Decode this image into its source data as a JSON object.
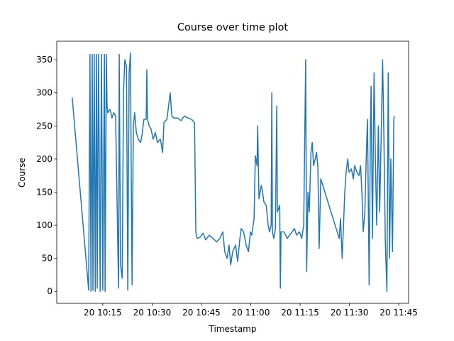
{
  "chart_data": {
    "type": "line",
    "title": "Course over time plot",
    "x_label": "Timestamp",
    "y_label": "Course",
    "color": "#1f77b4",
    "x": [
      605.7,
      610.7,
      611.1,
      611.4,
      611.8,
      612.0,
      612.4,
      612.7,
      613.1,
      613.3,
      613.7,
      614.2,
      614.6,
      615.0,
      615.5,
      615.7,
      616.1,
      616.3,
      616.5,
      617.2,
      617.8,
      618.3,
      618.9,
      619.6,
      619.8,
      620.0,
      620.4,
      620.9,
      621.3,
      621.7,
      622.2,
      622.6,
      623.0,
      623.4,
      623.9,
      624.3,
      624.7,
      625.2,
      625.8,
      626.5,
      626.9,
      627.5,
      628.2,
      628.4,
      628.6,
      629.1,
      629.7,
      630.3,
      631.0,
      631.6,
      632.5,
      633.2,
      633.6,
      634.5,
      635.5,
      636.0,
      636.6,
      637.7,
      638.8,
      639.8,
      640.9,
      642.0,
      642.9,
      643.3,
      643.7,
      644.6,
      645.5,
      646.3,
      647.4,
      648.5,
      649.6,
      650.6,
      651.5,
      652.1,
      652.8,
      653.4,
      653.9,
      654.5,
      655.4,
      656.0,
      656.7,
      657.1,
      657.8,
      658.6,
      659.3,
      659.9,
      660.3,
      661.0,
      661.4,
      661.9,
      662.1,
      662.5,
      663.2,
      663.6,
      664.0,
      664.7,
      665.3,
      665.7,
      666.2,
      666.4,
      666.6,
      667.0,
      667.5,
      667.9,
      668.1,
      668.8,
      669.0,
      669.2,
      670.1,
      671.1,
      671.8,
      672.6,
      673.3,
      673.9,
      674.8,
      675.5,
      676.1,
      676.7,
      677.0,
      677.4,
      677.8,
      678.3,
      678.7,
      679.1,
      679.6,
      680.0,
      680.4,
      680.8,
      681.3,
      686.9,
      687.3,
      687.8,
      688.2,
      688.6,
      689.0,
      689.5,
      689.9,
      690.6,
      691.2,
      691.6,
      692.3,
      692.9,
      693.4,
      693.8,
      694.2,
      694.7,
      695.1,
      695.5,
      696.0,
      696.4,
      696.6,
      697.0,
      697.5,
      697.9,
      698.3,
      698.8,
      699.2,
      699.6,
      700.1,
      700.5,
      700.9,
      701.4,
      701.8,
      702.2,
      702.6,
      703.1,
      703.5,
      703.7
    ],
    "values": [
      293,
      2,
      358,
      0,
      358,
      2,
      358,
      0,
      358,
      5,
      358,
      0,
      358,
      2,
      358,
      0,
      358,
      280,
      270,
      275,
      262,
      270,
      265,
      60,
      5,
      358,
      40,
      20,
      300,
      350,
      340,
      2,
      330,
      360,
      10,
      250,
      270,
      240,
      230,
      225,
      235,
      260,
      260,
      335,
      260,
      250,
      245,
      230,
      240,
      225,
      230,
      210,
      255,
      260,
      300,
      265,
      262,
      262,
      258,
      265,
      262,
      260,
      255,
      90,
      80,
      82,
      88,
      78,
      85,
      80,
      75,
      80,
      90,
      60,
      50,
      70,
      40,
      60,
      70,
      45,
      80,
      95,
      90,
      70,
      60,
      90,
      85,
      110,
      205,
      190,
      250,
      140,
      160,
      150,
      135,
      130,
      100,
      90,
      100,
      300,
      90,
      80,
      95,
      280,
      120,
      130,
      5,
      90,
      90,
      80,
      85,
      90,
      95,
      85,
      90,
      80,
      100,
      350,
      30,
      150,
      120,
      210,
      225,
      190,
      200,
      210,
      190,
      65,
      170,
      80,
      110,
      50,
      100,
      150,
      180,
      200,
      180,
      185,
      170,
      190,
      180,
      175,
      190,
      150,
      90,
      120,
      200,
      260,
      10,
      250,
      310,
      80,
      330,
      200,
      100,
      250,
      120,
      220,
      350,
      230,
      80,
      0,
      330,
      50,
      200,
      60,
      260,
      265
    ],
    "xlim": [
      601.0,
      708.0
    ],
    "ylim": [
      -18,
      378
    ],
    "xticks": [
      {
        "value": 615,
        "label": "20 10:15"
      },
      {
        "value": 630,
        "label": "20 10:30"
      },
      {
        "value": 645,
        "label": "20 10:45"
      },
      {
        "value": 660,
        "label": "20 11:00"
      },
      {
        "value": 675,
        "label": "20 11:15"
      },
      {
        "value": 690,
        "label": "20 11:30"
      },
      {
        "value": 705,
        "label": "20 11:45"
      }
    ],
    "yticks": [
      0,
      50,
      100,
      150,
      200,
      250,
      300,
      350
    ]
  }
}
